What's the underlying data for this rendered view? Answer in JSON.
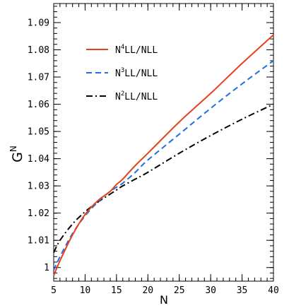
{
  "chart_data": {
    "type": "line",
    "xlabel": "N",
    "ylabel": "G",
    "ylabel_sup": "N",
    "xlim": [
      5,
      40
    ],
    "ylim": [
      0.995,
      1.097
    ],
    "x_ticks": [
      "5",
      "10",
      "15",
      "20",
      "25",
      "30",
      "35",
      "40"
    ],
    "x_tick_values": [
      5,
      10,
      15,
      20,
      25,
      30,
      35,
      40
    ],
    "y_ticks": [
      "1",
      "1.01",
      "1.02",
      "1.03",
      "1.04",
      "1.05",
      "1.06",
      "1.07",
      "1.08",
      "1.09"
    ],
    "y_tick_values": [
      1.0,
      1.01,
      1.02,
      1.03,
      1.04,
      1.05,
      1.06,
      1.07,
      1.08,
      1.09
    ],
    "x_minor_step": 1,
    "y_minor_step": 0.002,
    "grid": false,
    "legend_position": "top-left",
    "series": [
      {
        "name_main": "N",
        "name_sup": "4",
        "name_rest": "LL/NLL",
        "color": "#e8401c",
        "dash": "solid",
        "x": [
          5,
          6,
          8,
          10,
          12,
          14,
          15,
          16,
          18,
          20,
          25,
          30,
          35,
          40
        ],
        "y": [
          0.997,
          1.0025,
          1.012,
          1.0195,
          1.0245,
          1.028,
          1.0305,
          1.0325,
          1.0375,
          1.042,
          1.0535,
          1.064,
          1.075,
          1.0855
        ]
      },
      {
        "name_main": "N",
        "name_sup": "3",
        "name_rest": "LL/NLL",
        "color": "#1f6fe0",
        "dash": "8,5",
        "x": [
          5,
          6,
          8,
          10,
          12,
          14,
          15,
          16,
          18,
          20,
          25,
          30,
          35,
          40
        ],
        "y": [
          0.999,
          1.004,
          1.0125,
          1.019,
          1.024,
          1.028,
          1.0295,
          1.031,
          1.035,
          1.0395,
          1.049,
          1.0585,
          1.0675,
          1.076
        ]
      },
      {
        "name_main": "N",
        "name_sup": "2",
        "name_rest": "LL/NLL",
        "color": "#000000",
        "dash": "9,4,2,4",
        "x": [
          5,
          6,
          8,
          10,
          12,
          14,
          15,
          16,
          18,
          20,
          25,
          30,
          35,
          40
        ],
        "y": [
          1.0055,
          1.01,
          1.016,
          1.0205,
          1.024,
          1.027,
          1.0285,
          1.03,
          1.0325,
          1.035,
          1.042,
          1.0485,
          1.0545,
          1.06
        ]
      }
    ]
  }
}
